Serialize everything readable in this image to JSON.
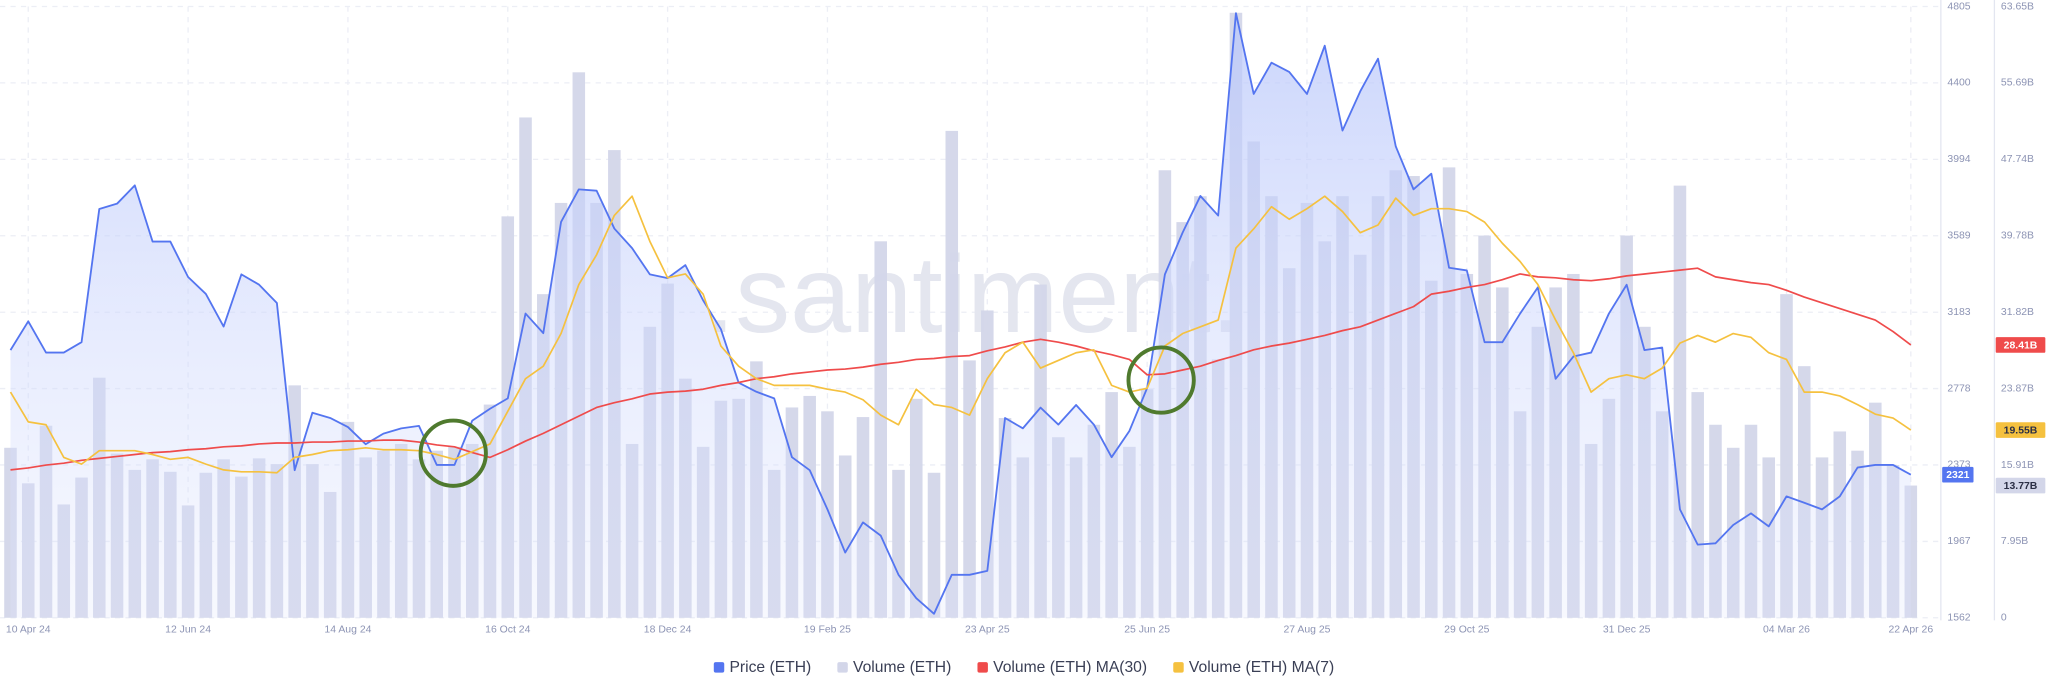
{
  "chart_data": {
    "type": "combo",
    "watermark": ".santiment.",
    "categories": [
      null,
      "10 Apr 24",
      null,
      null,
      null,
      null,
      null,
      null,
      null,
      null,
      "12 Jun 24",
      null,
      null,
      null,
      null,
      null,
      null,
      null,
      null,
      "14 Aug 24",
      null,
      null,
      null,
      null,
      null,
      null,
      null,
      null,
      "16 Oct 24",
      null,
      null,
      null,
      null,
      null,
      null,
      null,
      null,
      "18 Dec 24",
      null,
      null,
      null,
      null,
      null,
      null,
      null,
      null,
      "19 Feb 25",
      null,
      null,
      null,
      null,
      null,
      null,
      null,
      null,
      "23 Apr 25",
      null,
      null,
      null,
      null,
      null,
      null,
      null,
      null,
      "25 Jun 25",
      null,
      null,
      null,
      null,
      null,
      null,
      null,
      null,
      "27 Aug 25",
      null,
      null,
      null,
      null,
      null,
      null,
      null,
      null,
      "29 Oct 25",
      null,
      null,
      null,
      null,
      null,
      null,
      null,
      null,
      "31 Dec 25",
      null,
      null,
      null,
      null,
      null,
      null,
      null,
      null,
      "04 Mar 26",
      null,
      null,
      null,
      null,
      null,
      null,
      "22 Apr 26"
    ],
    "ylim": [
      1562,
      4805
    ],
    "yticks": [
      1562,
      1967,
      2373,
      2778,
      3183,
      3589,
      3994,
      4400,
      4805
    ],
    "y2lim": [
      0,
      63.65
    ],
    "y2ticks": [
      0,
      {
        "value": 7.95,
        "label": "7.95B"
      },
      {
        "value": 15.91,
        "label": "15.91B"
      },
      {
        "value": 23.87,
        "label": "23.87B"
      },
      {
        "value": 31.82,
        "label": "31.82B"
      },
      {
        "value": 39.78,
        "label": "39.78B"
      },
      {
        "value": 47.74,
        "label": "47.74B"
      },
      {
        "value": 55.69,
        "label": "55.69B"
      },
      {
        "value": 63.65,
        "label": "63.65B"
      }
    ],
    "grid": true,
    "legend": "bottom",
    "series": [
      {
        "name": "Price (ETH)",
        "type": "area",
        "color": "#5475f0",
        "values": [
          2982,
          3135,
          2969,
          2969,
          3024,
          3731,
          3759,
          3856,
          3558,
          3558,
          3370,
          3280,
          3107,
          3384,
          3329,
          3232,
          2345,
          2650,
          2622,
          2574,
          2483,
          2539,
          2567,
          2580,
          2373,
          2373,
          2608,
          2671,
          2726,
          3176,
          3072,
          3662,
          3835,
          3828,
          3627,
          3523,
          3384,
          3364,
          3433,
          3246,
          3093,
          2809,
          2761,
          2726,
          2414,
          2345,
          2137,
          1908,
          2068,
          1998,
          1790,
          1666,
          1583,
          1790,
          1790,
          1811,
          2622,
          2567,
          2677,
          2587,
          2691,
          2587,
          2414,
          2553,
          2781,
          3384,
          3606,
          3800,
          3696,
          4770,
          4341,
          4507,
          4458,
          4341,
          4597,
          4147,
          4355,
          4528,
          4063,
          3835,
          3918,
          3419,
          3405,
          3024,
          3024,
          3176,
          3315,
          2830,
          2948,
          2969,
          3176,
          3329,
          2982,
          2996,
          2137,
          1950,
          1957,
          2054,
          2116,
          2047,
          2206,
          2172,
          2137,
          2206,
          2359,
          2373,
          2373,
          2321
        ]
      },
      {
        "name": "Volume (ETH)",
        "type": "bar",
        "axis": "y2",
        "color": "#d3d6e9",
        "end_label": "13.77B",
        "values": [
          17.7,
          14.0,
          20.0,
          11.8,
          14.6,
          25.0,
          17.1,
          15.4,
          16.5,
          15.2,
          11.7,
          15.1,
          16.5,
          14.7,
          16.6,
          16.0,
          24.2,
          16.0,
          13.1,
          20.4,
          16.7,
          17.4,
          18.1,
          16.5,
          17.4,
          17.8,
          18.1,
          22.2,
          41.8,
          52.1,
          33.7,
          43.2,
          56.8,
          43.2,
          48.7,
          18.1,
          30.3,
          34.8,
          24.9,
          17.8,
          22.6,
          22.8,
          26.7,
          15.4,
          21.9,
          23.1,
          21.5,
          16.9,
          20.9,
          39.2,
          15.4,
          22.8,
          15.1,
          50.7,
          26.8,
          32.0,
          20.8,
          16.7,
          34.7,
          18.8,
          16.7,
          20.1,
          23.5,
          17.8,
          23.8,
          46.6,
          41.2,
          43.9,
          26.9,
          63.0,
          49.6,
          43.9,
          36.4,
          43.2,
          39.2,
          43.9,
          37.8,
          43.9,
          46.6,
          46.0,
          35.1,
          46.9,
          35.8,
          39.8,
          34.4,
          21.5,
          30.3,
          34.4,
          35.8,
          18.1,
          22.8,
          39.8,
          30.3,
          21.5,
          45.0,
          23.5,
          20.1,
          17.7,
          20.1,
          16.7,
          33.7,
          26.2,
          16.7,
          19.4,
          17.4,
          22.4,
          15.9,
          13.77
        ]
      },
      {
        "name": "Volume (ETH) MA(30)",
        "type": "line",
        "axis": "y2",
        "color": "#ef4b4b",
        "end_label": "28.41B",
        "values": [
          15.4,
          15.6,
          15.9,
          16.1,
          16.4,
          16.6,
          16.8,
          17.0,
          17.2,
          17.3,
          17.5,
          17.6,
          17.8,
          17.9,
          18.1,
          18.2,
          18.2,
          18.3,
          18.3,
          18.4,
          18.4,
          18.5,
          18.5,
          18.3,
          18.0,
          17.8,
          17.2,
          16.7,
          17.5,
          18.4,
          19.2,
          20.1,
          21.0,
          21.9,
          22.4,
          22.8,
          23.3,
          23.5,
          23.6,
          23.8,
          24.2,
          24.5,
          24.9,
          25.1,
          25.4,
          25.6,
          25.8,
          25.9,
          26.1,
          26.4,
          26.6,
          26.9,
          27.0,
          27.2,
          27.3,
          27.8,
          28.2,
          28.7,
          29.0,
          28.7,
          28.3,
          27.8,
          27.4,
          26.9,
          25.3,
          25.4,
          25.8,
          26.2,
          26.8,
          27.3,
          27.9,
          28.3,
          28.6,
          29.0,
          29.4,
          29.9,
          30.3,
          31.0,
          31.7,
          32.4,
          33.7,
          34.0,
          34.4,
          34.7,
          35.2,
          35.8,
          35.5,
          35.4,
          35.2,
          35.1,
          35.3,
          35.6,
          35.8,
          36.0,
          36.2,
          36.4,
          35.5,
          35.2,
          34.9,
          34.7,
          34.1,
          33.4,
          32.8,
          32.2,
          31.6,
          31.0,
          29.8,
          28.41
        ]
      },
      {
        "name": "Volume (ETH) MA(7)",
        "type": "line",
        "axis": "y2",
        "color": "#f5c13f",
        "end_label": "19.55B",
        "values": [
          23.5,
          20.4,
          20.1,
          16.7,
          16.0,
          17.4,
          17.4,
          17.4,
          17.0,
          16.5,
          16.7,
          16.0,
          15.4,
          15.2,
          15.2,
          15.1,
          16.7,
          17.0,
          17.4,
          17.5,
          17.7,
          17.5,
          17.5,
          17.4,
          17.0,
          16.5,
          17.3,
          18.1,
          21.5,
          24.9,
          26.2,
          29.6,
          34.7,
          37.8,
          41.9,
          43.9,
          39.2,
          35.4,
          35.8,
          33.7,
          28.3,
          26.2,
          24.9,
          24.2,
          24.2,
          24.2,
          23.8,
          23.5,
          22.7,
          21.1,
          20.1,
          23.8,
          22.2,
          21.9,
          21.1,
          24.9,
          27.6,
          28.7,
          26.0,
          26.8,
          27.6,
          27.9,
          24.2,
          23.5,
          23.9,
          28.3,
          29.6,
          30.3,
          31.0,
          38.5,
          40.5,
          42.8,
          41.5,
          42.6,
          43.9,
          42.3,
          40.1,
          40.9,
          43.7,
          41.9,
          42.6,
          42.6,
          42.3,
          41.2,
          39.0,
          37.1,
          34.7,
          31.0,
          27.6,
          23.5,
          24.9,
          25.3,
          24.9,
          26.0,
          28.6,
          29.4,
          28.7,
          29.6,
          29.2,
          27.6,
          26.9,
          23.5,
          23.5,
          23.1,
          22.2,
          21.2,
          20.8,
          19.55
        ]
      }
    ]
  }
}
